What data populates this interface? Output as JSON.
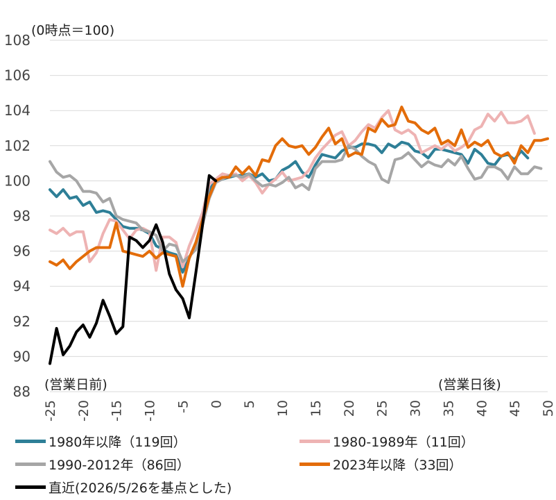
{
  "chart_data": {
    "type": "line",
    "annotations": {
      "y_unit": "(0時点＝100)",
      "before": "(営業日前)",
      "after": "(営業日後)"
    },
    "xlim": [
      -25,
      50
    ],
    "ylim": [
      88,
      108
    ],
    "x_ticks": [
      -25,
      -20,
      -15,
      -10,
      -5,
      0,
      5,
      10,
      15,
      20,
      25,
      30,
      35,
      40,
      45,
      50
    ],
    "y_ticks": [
      88,
      90,
      92,
      94,
      96,
      98,
      100,
      102,
      104,
      106,
      108
    ],
    "grid": "horizontal",
    "legend_position": "bottom",
    "series": [
      {
        "name": "1980年以降（119回）",
        "color": "#2e7f97",
        "x_start": -25,
        "values": [
          99.5,
          99.1,
          99.5,
          99.0,
          99.1,
          98.6,
          98.8,
          98.2,
          98.3,
          98.2,
          97.8,
          97.4,
          97.3,
          97.3,
          97.2,
          97.0,
          96.3,
          96.1,
          95.9,
          95.8,
          94.8,
          95.6,
          96.5,
          97.8,
          99.5,
          100.0,
          100.1,
          100.2,
          100.3,
          100.3,
          100.4,
          100.2,
          100.4,
          100.0,
          100.1,
          100.6,
          100.8,
          101.1,
          100.5,
          100.2,
          100.9,
          101.5,
          101.4,
          101.3,
          101.7,
          101.9,
          101.9,
          102.1,
          102.1,
          102.0,
          101.6,
          102.1,
          101.9,
          102.2,
          102.1,
          101.7,
          101.6,
          101.3,
          101.8,
          101.8,
          101.7,
          101.6,
          101.5,
          101.0,
          101.8,
          101.5,
          101.0,
          100.9,
          101.4,
          101.5,
          101.2,
          101.7,
          101.3
        ]
      },
      {
        "name": "1980-1989年（11回）",
        "color": "#eeb3b3",
        "x_start": -25,
        "values": [
          97.2,
          97.0,
          97.3,
          96.9,
          97.1,
          97.1,
          95.4,
          95.9,
          97.0,
          97.8,
          97.7,
          97.2,
          96.7,
          97.2,
          97.3,
          97.1,
          94.9,
          96.8,
          96.8,
          96.5,
          95.1,
          96.3,
          97.2,
          98.2,
          99.8,
          100.1,
          100.4,
          100.3,
          100.4,
          100.0,
          100.3,
          99.9,
          99.3,
          99.8,
          100.1,
          100.5,
          100.0,
          100.1,
          100.2,
          100.6,
          101.3,
          101.8,
          102.2,
          102.6,
          102.8,
          102.0,
          102.3,
          102.8,
          103.2,
          103.0,
          103.6,
          104.0,
          102.9,
          102.7,
          102.9,
          102.6,
          101.6,
          101.8,
          102.0,
          101.8,
          102.1,
          101.7,
          101.9,
          102.2,
          102.9,
          103.1,
          103.8,
          103.4,
          103.9,
          103.3,
          103.3,
          103.4,
          103.7,
          102.7
        ]
      },
      {
        "name": "1990-2012年（86回）",
        "color": "#a6a6a6",
        "x_start": -25,
        "values": [
          101.1,
          100.5,
          100.2,
          100.3,
          100.0,
          99.4,
          99.4,
          99.3,
          98.8,
          99.0,
          98.0,
          97.8,
          97.7,
          97.6,
          97.2,
          97.1,
          96.9,
          96.0,
          96.4,
          96.3,
          95.4,
          95.7,
          96.1,
          97.5,
          99.0,
          99.9,
          100.1,
          100.3,
          100.3,
          100.2,
          100.4,
          100.0,
          99.7,
          99.8,
          99.7,
          99.9,
          100.2,
          99.6,
          99.8,
          99.5,
          100.7,
          101.1,
          101.1,
          101.1,
          101.2,
          102.0,
          101.8,
          101.4,
          101.1,
          100.9,
          100.1,
          99.9,
          101.2,
          101.3,
          101.6,
          101.2,
          100.8,
          101.1,
          100.9,
          100.8,
          101.2,
          100.9,
          101.4,
          100.7,
          100.1,
          100.2,
          100.8,
          100.8,
          100.6,
          100.1,
          100.8,
          100.4,
          100.4,
          100.8,
          100.7
        ]
      },
      {
        "name": "2023年以降（33回）",
        "color": "#e36c09",
        "x_start": -25,
        "values": [
          95.4,
          95.2,
          95.5,
          95.0,
          95.4,
          95.7,
          96.0,
          96.2,
          96.2,
          96.2,
          97.6,
          96.0,
          95.9,
          95.8,
          95.7,
          96.0,
          95.6,
          95.9,
          95.8,
          95.7,
          94.0,
          95.6,
          96.5,
          97.8,
          99.1,
          100.0,
          100.2,
          100.2,
          100.8,
          100.4,
          100.8,
          100.3,
          101.2,
          101.1,
          102.0,
          102.4,
          102.0,
          101.9,
          102.0,
          101.5,
          101.9,
          102.5,
          103.0,
          102.1,
          102.4,
          101.4,
          101.6,
          101.5,
          103.0,
          102.8,
          103.5,
          103.1,
          103.2,
          104.2,
          103.4,
          103.3,
          102.9,
          102.7,
          103.0,
          102.1,
          102.3,
          102.0,
          102.9,
          101.9,
          102.2,
          102.0,
          102.3,
          101.6,
          101.4,
          101.6,
          101.0,
          102.0,
          101.6,
          102.3,
          102.3,
          102.4
        ]
      },
      {
        "name": "直近(2026/5/26を基点とした)",
        "color": "#000000",
        "x_start": -25,
        "values": [
          89.6,
          91.6,
          90.1,
          90.6,
          91.4,
          91.8,
          91.1,
          91.9,
          93.2,
          92.3,
          91.3,
          91.7,
          96.8,
          96.6,
          96.2,
          96.6,
          97.5,
          96.5,
          94.7,
          93.8,
          93.3,
          92.2,
          94.8,
          97.5,
          100.3,
          100.0
        ]
      }
    ]
  }
}
